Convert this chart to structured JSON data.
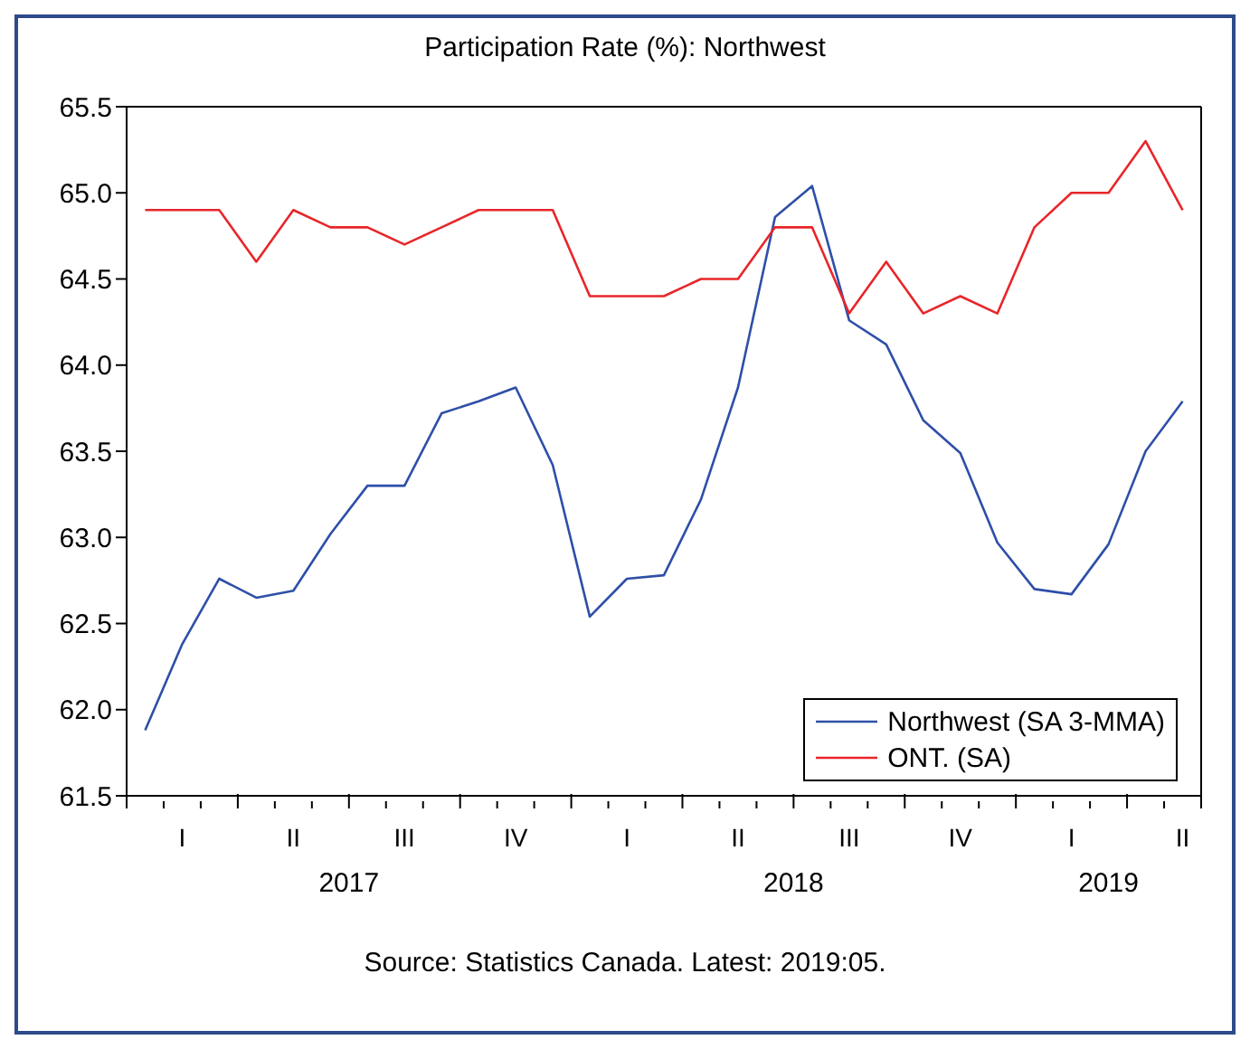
{
  "chart_data": {
    "type": "line",
    "title": "Participation Rate (%): Northwest",
    "categories": [
      null,
      "I",
      null,
      null,
      "II",
      null,
      null,
      "III",
      null,
      null,
      "IV",
      null,
      null,
      "I",
      null,
      null,
      "II",
      null,
      null,
      "III",
      null,
      null,
      "IV",
      null,
      null,
      "I",
      null,
      null,
      "II"
    ],
    "series": [
      {
        "name": "Northwest (SA 3-MMA)",
        "color": "#2e4fa8",
        "values": [
          61.88,
          62.38,
          62.76,
          62.65,
          62.69,
          63.02,
          63.3,
          63.3,
          63.72,
          63.79,
          63.87,
          63.42,
          62.54,
          62.76,
          62.78,
          63.22,
          63.87,
          64.86,
          65.04,
          64.26,
          64.12,
          63.68,
          63.49,
          62.97,
          62.7,
          62.67,
          62.96,
          63.5,
          63.79
        ]
      },
      {
        "name": "ONT. (SA)",
        "color": "#e8262a",
        "values": [
          64.9,
          64.9,
          64.9,
          64.6,
          64.9,
          64.8,
          64.8,
          64.7,
          64.8,
          64.9,
          64.9,
          64.9,
          64.4,
          64.4,
          64.4,
          64.5,
          64.5,
          64.8,
          64.8,
          64.3,
          64.6,
          64.3,
          64.4,
          64.3,
          64.8,
          65.0,
          65.0,
          65.3,
          64.9
        ]
      }
    ],
    "ylim": [
      61.5,
      65.5
    ],
    "yticks": [
      61.5,
      {
        "value": 62,
        "label": "62.0"
      },
      62.5,
      {
        "value": 63,
        "label": "63.0"
      },
      63.5,
      {
        "value": 64,
        "label": "64.0"
      },
      64.5,
      {
        "value": 65,
        "label": "65.0"
      },
      65.5
    ],
    "annotations": [
      "2017",
      "2018",
      "2019",
      "Source: Statistics Canada. Latest: 2019:05."
    ],
    "grid": false,
    "legend": "bottom right",
    "marker": "none",
    "line_style": "solid"
  }
}
